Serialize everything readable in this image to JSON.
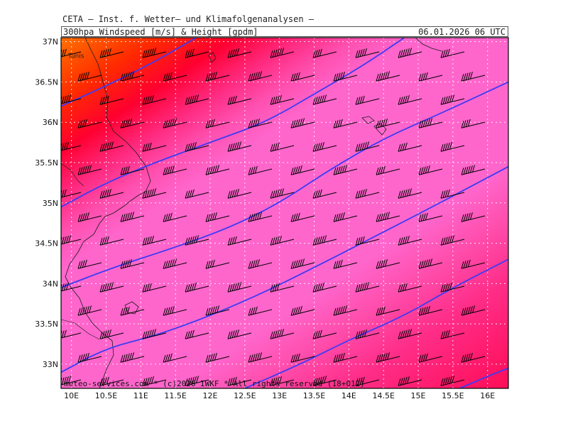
{
  "header": {
    "title": "CETA – Inst. f. Wetter– und Klimafolgenanalysen –",
    "subtitle": "300hpa Windspeed [m/s] & Height [gpdm]",
    "datetime": "06.01.2026 06 UTC"
  },
  "footer": {
    "credit": "meteo-services.com * (c)2026 IWKF * All rights reserved (18+012)"
  },
  "places": [
    {
      "name": "Tunis",
      "lon": 9.95,
      "lat": 36.8
    }
  ],
  "colors": {
    "height_contour": "#3b3bf5",
    "barb": "#000000",
    "grid": "#ffffff",
    "coastline": "#1a1a1a",
    "speed_bands": [
      "#ff66cc",
      "#ff55aa",
      "#ff3399",
      "#ff1a66",
      "#ff0033",
      "#ff3300",
      "#ff6600"
    ]
  },
  "chart_data": {
    "type": "map",
    "projection": "lat-lon",
    "lon_range": [
      9.85,
      16.3
    ],
    "lat_range": [
      32.7,
      37.05
    ],
    "lon_ticks": [
      10,
      10.5,
      11,
      11.5,
      12,
      12.5,
      13,
      13.5,
      14,
      14.5,
      15,
      15.5,
      16
    ],
    "lon_tick_labels": [
      "10E",
      "10.5E",
      "11E",
      "11.5E",
      "12E",
      "12.5E",
      "13E",
      "13.5E",
      "14E",
      "14.5E",
      "15E",
      "15.5E",
      "16E"
    ],
    "lat_ticks": [
      33,
      33.5,
      34,
      34.5,
      35,
      35.5,
      36,
      36.5,
      37
    ],
    "lat_tick_labels": [
      "33N",
      "33.5N",
      "34N",
      "34.5N",
      "35N",
      "35.5N",
      "36N",
      "36.5N",
      "37N"
    ],
    "grid": true,
    "height_contours": [
      {
        "points": [
          [
            9.85,
            36.2
          ],
          [
            10.5,
            36.45
          ],
          [
            11.2,
            36.75
          ],
          [
            11.8,
            37.05
          ]
        ]
      },
      {
        "points": [
          [
            9.85,
            34.95
          ],
          [
            10.5,
            35.25
          ],
          [
            11.2,
            35.5
          ],
          [
            12.0,
            35.75
          ],
          [
            12.8,
            36.0
          ],
          [
            13.5,
            36.35
          ],
          [
            14.2,
            36.7
          ],
          [
            14.8,
            37.05
          ]
        ]
      },
      {
        "points": [
          [
            9.85,
            33.95
          ],
          [
            10.6,
            34.2
          ],
          [
            11.5,
            34.45
          ],
          [
            12.3,
            34.7
          ],
          [
            13.0,
            35.0
          ],
          [
            13.7,
            35.4
          ],
          [
            14.5,
            35.8
          ],
          [
            15.3,
            36.1
          ],
          [
            16.3,
            36.5
          ]
        ]
      },
      {
        "points": [
          [
            9.85,
            32.9
          ],
          [
            10.5,
            33.2
          ],
          [
            11.2,
            33.35
          ],
          [
            12.0,
            33.6
          ],
          [
            12.8,
            33.9
          ],
          [
            13.5,
            34.2
          ],
          [
            14.3,
            34.55
          ],
          [
            15.2,
            34.95
          ],
          [
            16.3,
            35.45
          ]
        ]
      },
      {
        "points": [
          [
            12.5,
            32.7
          ],
          [
            13.3,
            33.0
          ],
          [
            14.0,
            33.3
          ],
          [
            14.8,
            33.6
          ],
          [
            15.5,
            33.95
          ],
          [
            16.3,
            34.3
          ]
        ]
      },
      {
        "points": [
          [
            15.6,
            32.7
          ],
          [
            16.0,
            32.85
          ],
          [
            16.3,
            32.95
          ]
        ]
      }
    ],
    "wind_barbs": {
      "direction": "WSW",
      "rows": 15,
      "cols": 10
    }
  }
}
